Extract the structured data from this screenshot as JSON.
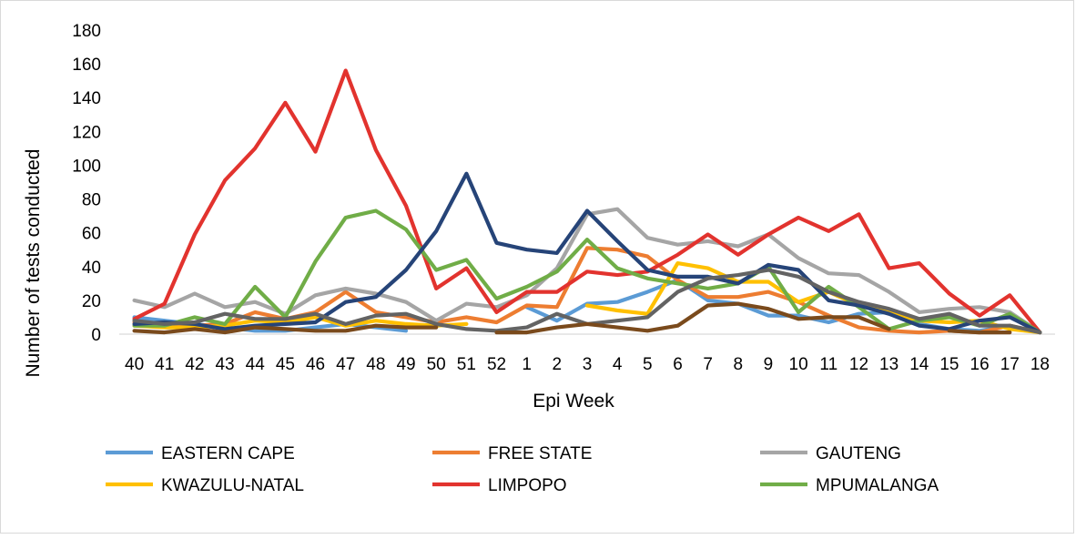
{
  "chart_data": {
    "type": "line",
    "xlabel": "Epi Week",
    "ylabel": "Number of tests conducted",
    "ylim": [
      0,
      180
    ],
    "yticks": [
      0,
      20,
      40,
      60,
      80,
      100,
      120,
      140,
      160,
      180
    ],
    "grid": false,
    "legend_position": "bottom",
    "categories": [
      "40",
      "41",
      "42",
      "43",
      "44",
      "45",
      "46",
      "47",
      "48",
      "49",
      "50",
      "51",
      "52",
      "1",
      "2",
      "3",
      "4",
      "5",
      "6",
      "7",
      "8",
      "9",
      "10",
      "11",
      "12",
      "13",
      "14",
      "15",
      "16",
      "17",
      "18"
    ],
    "series": [
      {
        "name": "EASTERN CAPE",
        "color": "#5b9bd5",
        "values": [
          10,
          8,
          6,
          4,
          2,
          2,
          4,
          6,
          4,
          2,
          null,
          null,
          null,
          16,
          8,
          18,
          19,
          25,
          32,
          20,
          18,
          11,
          11,
          7,
          12,
          13,
          6,
          3,
          2,
          5,
          1
        ]
      },
      {
        "name": "FREE STATE",
        "color": "#ed7d31",
        "values": [
          7,
          6,
          5,
          6,
          13,
          9,
          13,
          25,
          13,
          10,
          7,
          10,
          7,
          17,
          16,
          51,
          50,
          46,
          32,
          22,
          22,
          25,
          19,
          11,
          4,
          2,
          1,
          2,
          1,
          5,
          1
        ]
      },
      {
        "name": "GAUTENG",
        "color": "#a5a5a5",
        "values": [
          20,
          16,
          24,
          16,
          19,
          12,
          23,
          27,
          24,
          19,
          8,
          18,
          16,
          23,
          39,
          71,
          74,
          57,
          53,
          55,
          52,
          59,
          45,
          36,
          35,
          25,
          13,
          15,
          16,
          13,
          1
        ]
      },
      {
        "name": "KWAZULU-NATAL",
        "color": "#ffc000",
        "values": [
          5,
          4,
          4,
          5,
          8,
          7,
          10,
          5,
          8,
          6,
          5,
          6,
          null,
          null,
          null,
          17,
          14,
          12,
          42,
          39,
          31,
          31,
          19,
          25,
          17,
          13,
          8,
          7,
          8,
          3,
          1
        ]
      },
      {
        "name": "LIMPOPO",
        "color": "#e2332e",
        "values": [
          9,
          18,
          59,
          91,
          110,
          137,
          108,
          156,
          109,
          76,
          27,
          39,
          13,
          25,
          25,
          37,
          35,
          37,
          47,
          59,
          47,
          59,
          69,
          61,
          71,
          39,
          42,
          24,
          11,
          23,
          1
        ]
      },
      {
        "name": "MPUMALANGA",
        "color": "#70ad47",
        "values": [
          5,
          5,
          10,
          6,
          28,
          10,
          43,
          69,
          73,
          62,
          38,
          44,
          21,
          28,
          37,
          56,
          39,
          33,
          30,
          27,
          30,
          40,
          13,
          28,
          16,
          3,
          8,
          10,
          5,
          12,
          1
        ]
      },
      {
        "name": "",
        "color": "#264478",
        "values": [
          6,
          7,
          6,
          3,
          5,
          6,
          7,
          19,
          22,
          38,
          61,
          95,
          54,
          50,
          48,
          73,
          55,
          38,
          34,
          34,
          30,
          41,
          38,
          20,
          17,
          12,
          5,
          3,
          8,
          10,
          1
        ]
      },
      {
        "name": "",
        "color": "#636363",
        "values": [
          8,
          6,
          7,
          12,
          9,
          9,
          12,
          6,
          11,
          12,
          6,
          3,
          2,
          4,
          12,
          6,
          8,
          10,
          25,
          33,
          35,
          38,
          34,
          25,
          19,
          15,
          9,
          12,
          5,
          5,
          1
        ]
      },
      {
        "name": "",
        "color": "#7a4a1c",
        "values": [
          2,
          1,
          3,
          1,
          4,
          3,
          2,
          2,
          5,
          4,
          4,
          null,
          1,
          1,
          4,
          6,
          4,
          2,
          5,
          17,
          18,
          15,
          9,
          10,
          10,
          3,
          null,
          2,
          1,
          1,
          null
        ]
      }
    ]
  }
}
